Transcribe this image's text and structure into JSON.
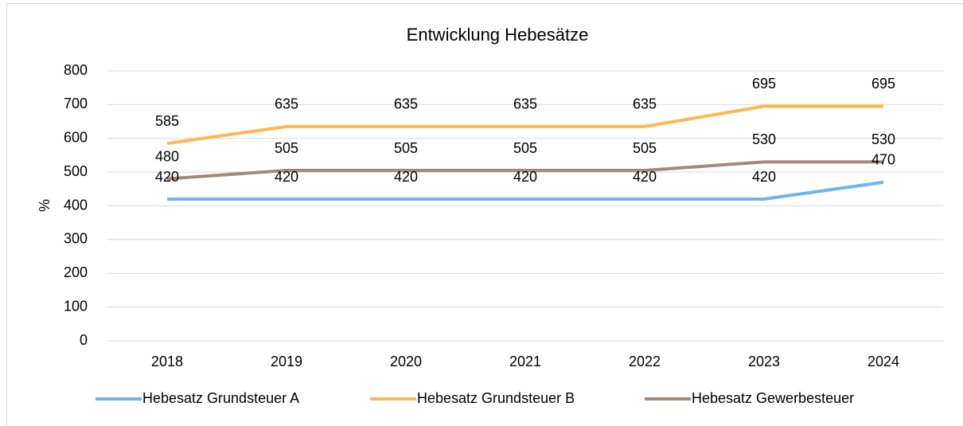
{
  "chart_data": {
    "type": "line",
    "title": "Entwicklung Hebesätze",
    "y_label": "%",
    "categories": [
      "2018",
      "2019",
      "2020",
      "2021",
      "2022",
      "2023",
      "2024"
    ],
    "series": [
      {
        "name": "Hebesatz Grundsteuer A",
        "color": "#6cb4ee",
        "values": [
          420,
          420,
          420,
          420,
          420,
          420,
          470
        ]
      },
      {
        "name": "Hebesatz Grundsteuer B",
        "color": "#ffb84d",
        "values": [
          585,
          635,
          635,
          635,
          635,
          695,
          695
        ]
      },
      {
        "name": "Hebesatz Gewerbesteuer",
        "color": "#a08a7e",
        "values": [
          480,
          505,
          505,
          505,
          505,
          530,
          530
        ]
      }
    ],
    "ylim": [
      0,
      800
    ],
    "yticks": [
      0,
      100,
      200,
      300,
      400,
      500,
      600,
      700,
      800
    ],
    "grid": true,
    "legend": "bottom"
  }
}
